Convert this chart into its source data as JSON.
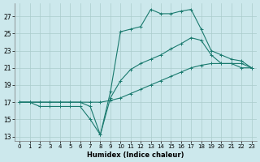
{
  "title": "",
  "xlabel": "Humidex (Indice chaleur)",
  "background_color": "#cce8ec",
  "grid_color": "#aacccc",
  "line_color": "#1a7a6e",
  "xlim": [
    -0.5,
    23.5
  ],
  "ylim": [
    12.5,
    28.5
  ],
  "yticks": [
    13,
    15,
    17,
    19,
    21,
    23,
    25,
    27
  ],
  "xticks": [
    0,
    1,
    2,
    3,
    4,
    5,
    6,
    7,
    8,
    9,
    10,
    11,
    12,
    13,
    14,
    15,
    16,
    17,
    18,
    19,
    20,
    21,
    22,
    23
  ],
  "line1_x": [
    0,
    1,
    2,
    3,
    4,
    5,
    6,
    7,
    8,
    9,
    10,
    11,
    12,
    13,
    14,
    15,
    16,
    17,
    18,
    19,
    20,
    21,
    22,
    23
  ],
  "line1_y": [
    17.0,
    17.0,
    16.5,
    16.5,
    16.5,
    16.5,
    16.5,
    15.0,
    13.2,
    18.2,
    25.2,
    25.5,
    25.8,
    27.8,
    27.3,
    27.3,
    27.6,
    27.8,
    25.5,
    23.0,
    22.5,
    22.0,
    21.8,
    21.0
  ],
  "line2_x": [
    0,
    1,
    2,
    3,
    4,
    5,
    6,
    7,
    8,
    9,
    10,
    11,
    12,
    13,
    14,
    15,
    16,
    17,
    18,
    19,
    20,
    21,
    22,
    23
  ],
  "line2_y": [
    17.0,
    17.0,
    17.0,
    17.0,
    17.0,
    17.0,
    17.0,
    16.5,
    13.2,
    17.5,
    19.5,
    20.8,
    21.5,
    22.0,
    22.5,
    23.2,
    23.8,
    24.5,
    24.2,
    22.5,
    21.5,
    21.5,
    21.0,
    21.0
  ],
  "line3_x": [
    0,
    1,
    2,
    3,
    4,
    5,
    6,
    7,
    8,
    9,
    10,
    11,
    12,
    13,
    14,
    15,
    16,
    17,
    18,
    19,
    20,
    21,
    22,
    23
  ],
  "line3_y": [
    17.0,
    17.0,
    17.0,
    17.0,
    17.0,
    17.0,
    17.0,
    17.0,
    17.0,
    17.2,
    17.5,
    18.0,
    18.5,
    19.0,
    19.5,
    20.0,
    20.5,
    21.0,
    21.3,
    21.5,
    21.5,
    21.5,
    21.5,
    21.0
  ]
}
